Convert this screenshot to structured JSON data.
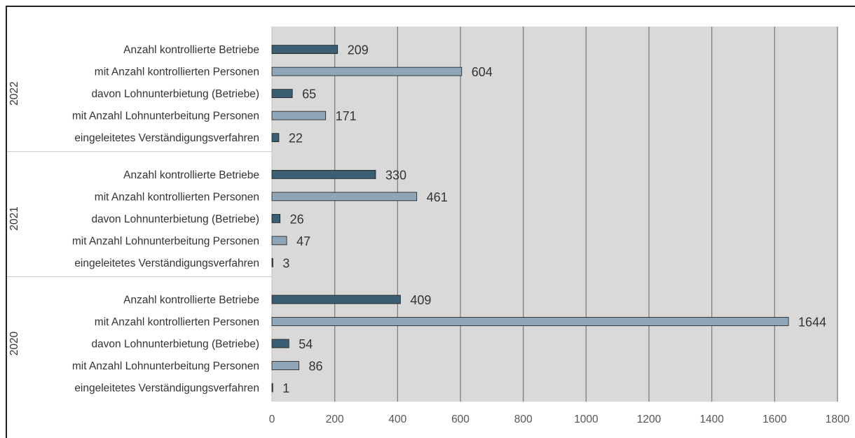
{
  "colors": {
    "plot_background": "#d9d9d9",
    "gridline": "#7f7f7f",
    "bar_dark": "#3a5f73",
    "bar_light": "#8ea6b8",
    "bar_outline": "#1a1a1a"
  },
  "chart_data": {
    "type": "bar",
    "orientation": "horizontal",
    "title": "",
    "xlabel": "",
    "ylabel": "",
    "xlim": [
      0,
      1800
    ],
    "xticks": [
      "0",
      "200",
      "400",
      "600",
      "800",
      "1000",
      "1200",
      "1400",
      "1600",
      "1800"
    ],
    "grid": "vertical",
    "legend": "none",
    "categories": [
      "Anzahl kontrollierte Betriebe",
      "mit Anzahl kontrollierten Personen",
      "davon Lohnunterbietung (Betriebe)",
      "mit Anzahl Lohnunterbeitung Personen",
      "eingeleitetes Verständigungsverfahren"
    ],
    "groups": [
      {
        "year": "2022",
        "values": [
          209,
          604,
          65,
          171,
          22
        ]
      },
      {
        "year": "2021",
        "values": [
          330,
          461,
          26,
          47,
          3
        ]
      },
      {
        "year": "2020",
        "values": [
          409,
          1644,
          54,
          86,
          1
        ]
      }
    ]
  }
}
